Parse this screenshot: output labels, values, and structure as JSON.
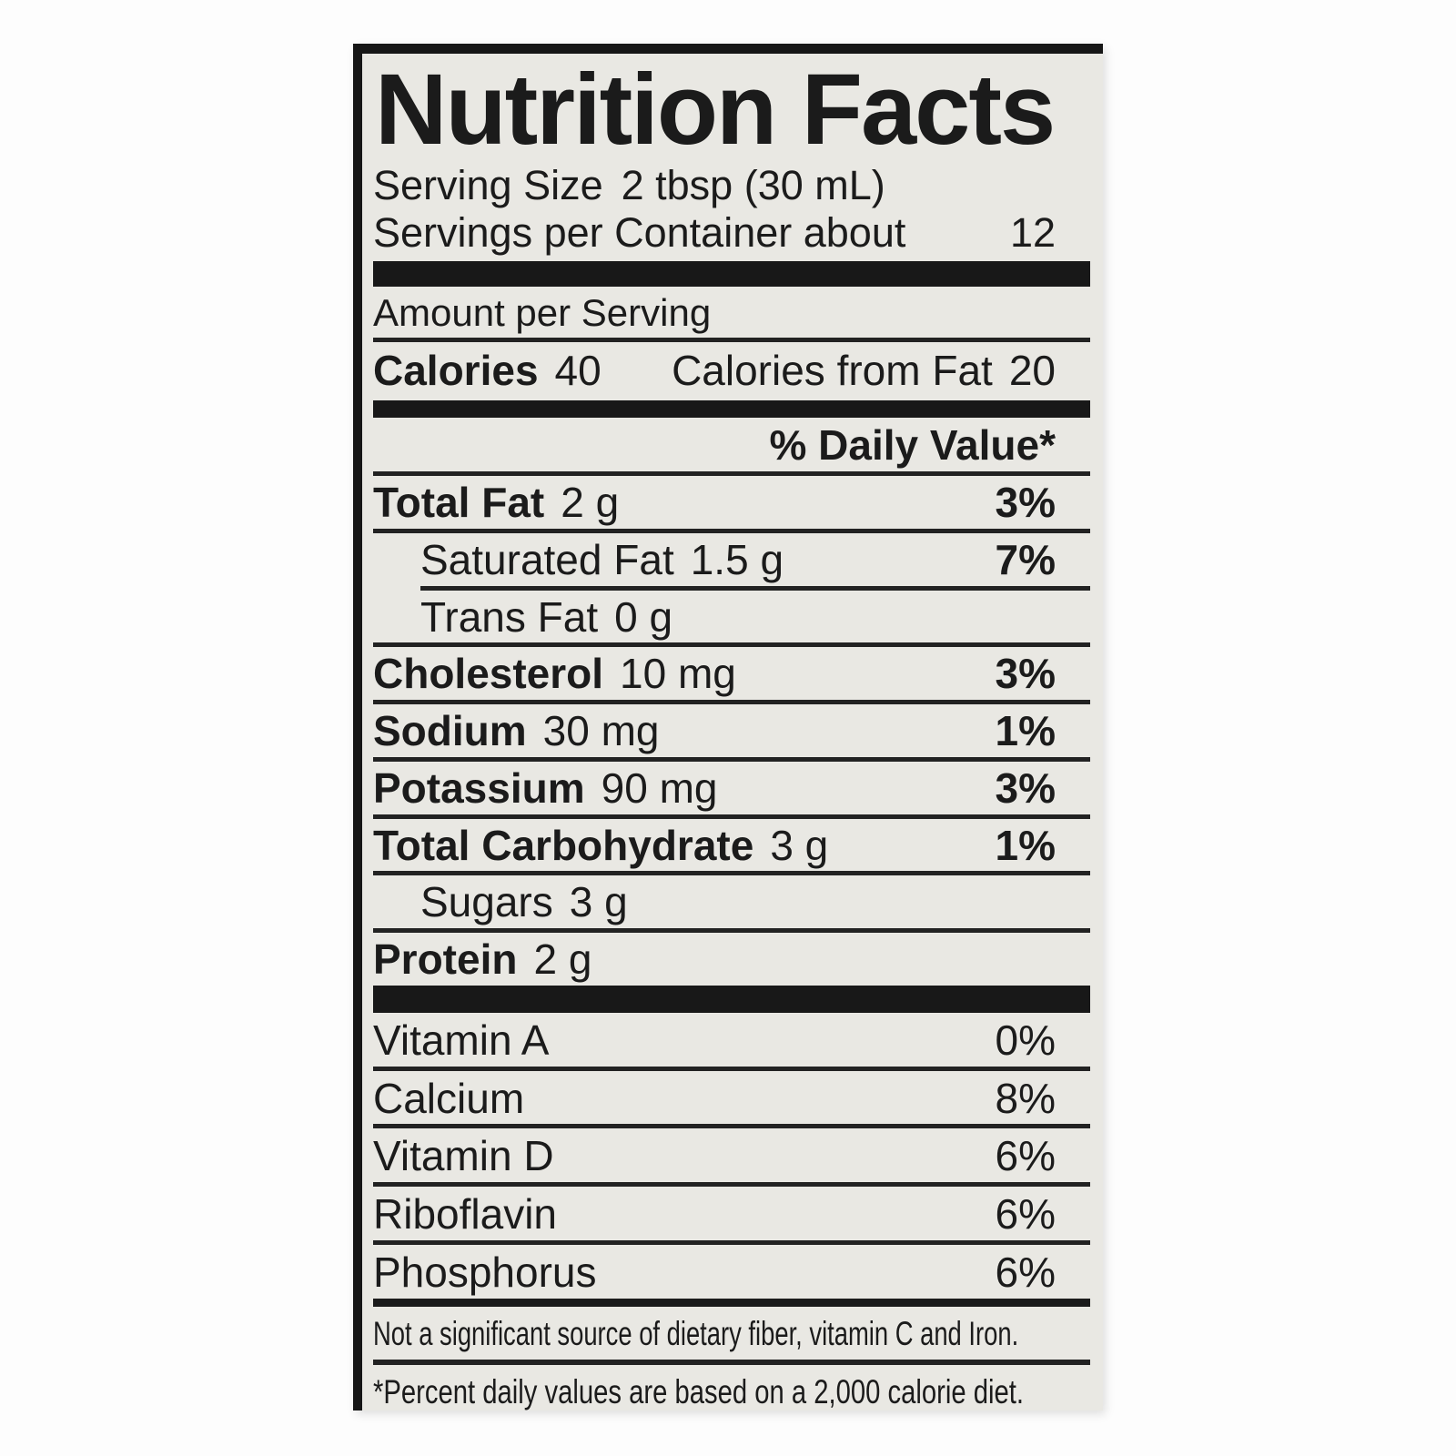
{
  "label": {
    "title": "Nutrition Facts",
    "serving_size": {
      "label": "Serving Size",
      "value": "2 tbsp (30 mL)"
    },
    "servings_per_container": {
      "label": "Servings per Container about",
      "value": "12"
    },
    "amount_per_serving": "Amount per Serving",
    "calories": {
      "label": "Calories",
      "value": "40",
      "from_fat_label": "Calories from Fat",
      "from_fat_value": "20"
    },
    "daily_value_header": "% Daily Value*",
    "nutrients": [
      {
        "name": "Total Fat",
        "amount": "2 g",
        "daily_value": "3%"
      },
      {
        "name": "Saturated Fat",
        "amount": "1.5 g",
        "daily_value": "7%"
      },
      {
        "name": "Trans Fat",
        "amount": "0 g",
        "daily_value": ""
      },
      {
        "name": "Cholesterol",
        "amount": "10 mg",
        "daily_value": "3%"
      },
      {
        "name": "Sodium",
        "amount": "30 mg",
        "daily_value": "1%"
      },
      {
        "name": "Potassium",
        "amount": "90 mg",
        "daily_value": "3%"
      },
      {
        "name": "Total Carbohydrate",
        "amount": "3 g",
        "daily_value": "1%"
      },
      {
        "name": "Sugars",
        "amount": "3 g",
        "daily_value": ""
      },
      {
        "name": "Protein",
        "amount": "2 g",
        "daily_value": ""
      }
    ],
    "vitamins": [
      {
        "name": "Vitamin A",
        "daily_value": "0%"
      },
      {
        "name": "Calcium",
        "daily_value": "8%"
      },
      {
        "name": "Vitamin D",
        "daily_value": "6%"
      },
      {
        "name": "Riboflavin",
        "daily_value": "6%"
      },
      {
        "name": "Phosphorus",
        "daily_value": "6%"
      }
    ],
    "footnotes": {
      "not_significant": "Not a significant source of dietary fiber, vitamin C and Iron.",
      "percent_daily": "*Percent daily values are based on a 2,000 calorie diet."
    },
    "colors": {
      "ink": "#1b1b1b",
      "label_background": "#e9e8e3",
      "page_background": "#fdfdfd"
    }
  }
}
